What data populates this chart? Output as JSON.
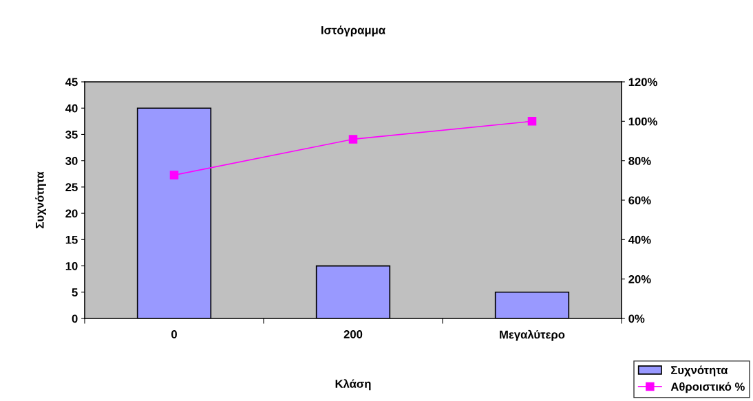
{
  "chart_data": {
    "type": "bar",
    "title": "Ιστόγραμμα",
    "xlabel": "Κλάση",
    "ylabel": "Συχνότητα",
    "categories": [
      "0",
      "200",
      "Μεγαλύτερο"
    ],
    "series": [
      {
        "name": "Συχνότητα",
        "color": "#9999ff",
        "values": [
          40,
          10,
          5
        ]
      },
      {
        "name": "Αθροιστικό %",
        "type": "line",
        "axis": "y2",
        "color": "#ff00ff",
        "marker": "square",
        "values": [
          72.7,
          90.9,
          100
        ]
      }
    ],
    "ylim": [
      0,
      45
    ],
    "yticks": [
      0,
      5,
      10,
      15,
      20,
      25,
      30,
      35,
      40,
      45
    ],
    "y2lim": [
      0,
      120
    ],
    "y2ticks": [
      {
        "value": 0,
        "label": "0%"
      },
      {
        "value": 20,
        "label": "20%"
      },
      {
        "value": 40,
        "label": "40%"
      },
      {
        "value": 60,
        "label": "60%"
      },
      {
        "value": 80,
        "label": "80%"
      },
      {
        "value": 100,
        "label": "100%"
      },
      {
        "value": 120,
        "label": "120%"
      }
    ],
    "grid": false,
    "legend": "bottom right"
  }
}
